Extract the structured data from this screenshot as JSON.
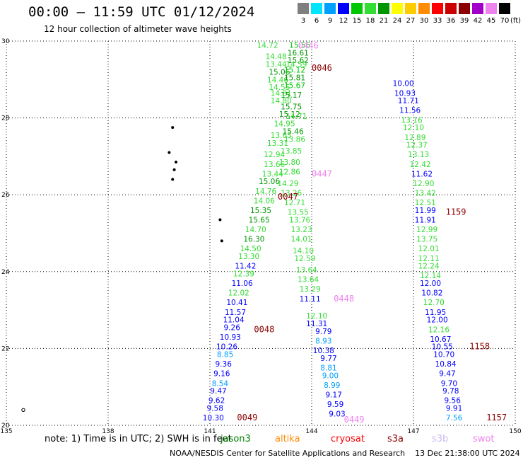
{
  "title": "00:00 – 11:59 UTC 01/12/2024",
  "subtitle": "12 hour collection of altimeter wave heights",
  "legend": {
    "bins": [
      {
        "label": "3",
        "color": "#7f7f7f"
      },
      {
        "label": "6",
        "color": "#00e5ff"
      },
      {
        "label": "9",
        "color": "#00a0ff"
      },
      {
        "label": "12",
        "color": "#0000ff"
      },
      {
        "label": "15",
        "color": "#00c800"
      },
      {
        "label": "18",
        "color": "#33dd33"
      },
      {
        "label": "21",
        "color": "#009600"
      },
      {
        "label": "24",
        "color": "#ffff00"
      },
      {
        "label": "27",
        "color": "#ffcc00"
      },
      {
        "label": "30",
        "color": "#ff8c00"
      },
      {
        "label": "33",
        "color": "#ff0000"
      },
      {
        "label": "36",
        "color": "#cc0000"
      },
      {
        "label": "39",
        "color": "#8b0000"
      },
      {
        "label": "42",
        "color": "#a000c8"
      },
      {
        "label": "45",
        "color": "#ee82ee"
      },
      {
        "label": "70",
        "color": "#000000"
      }
    ],
    "unit": "(ft)"
  },
  "note": "note: 1) Time is in UTC; 2) SWH is in feet",
  "satellites": [
    {
      "name": "jason3",
      "color": "#008000"
    },
    {
      "name": "altika",
      "color": "#ff8c00"
    },
    {
      "name": "cryosat",
      "color": "#ff0000"
    },
    {
      "name": "s3a",
      "color": "#8b0000"
    },
    {
      "name": "s3b",
      "color": "#ccbbee"
    },
    {
      "name": "swot",
      "color": "#ee82ee"
    }
  ],
  "footer": "NOAA/NESDIS Center for Satellite Applications and Research    13 Dec 21:38:00 UTC 2024",
  "chart_data": {
    "type": "scatter",
    "x_ticks": [
      "135",
      "138",
      "141",
      "144",
      "147",
      "150"
    ],
    "y_ticks": [
      "20",
      "22",
      "24",
      "26",
      "28",
      "30"
    ],
    "xlim": [
      135,
      150
    ],
    "ylim": [
      20,
      30
    ],
    "grid": true,
    "tracks": [
      {
        "points": [
          [
            142.7,
            29.9,
            "14.72",
            "#33dd33"
          ],
          [
            143.65,
            29.9,
            "15.56",
            "#00c800"
          ],
          [
            143.6,
            29.7,
            "16.61",
            "#009600"
          ],
          [
            142.95,
            29.6,
            "14.48",
            "#33dd33"
          ],
          [
            143.6,
            29.5,
            "15.62",
            "#009600"
          ],
          [
            142.95,
            29.4,
            "13.44",
            "#33dd33"
          ],
          [
            143.55,
            29.4,
            "14.59",
            "#33dd33"
          ],
          [
            143.05,
            29.2,
            "15.06",
            "#009600"
          ],
          [
            143.5,
            29.25,
            "15.12",
            "#00c800"
          ],
          [
            143.0,
            29.0,
            "14.46",
            "#33dd33"
          ],
          [
            143.5,
            29.05,
            "15.81",
            "#009600"
          ],
          [
            143.05,
            28.8,
            "14.55",
            "#33dd33"
          ],
          [
            143.5,
            28.85,
            "15.67",
            "#00c800"
          ],
          [
            143.1,
            28.65,
            "14.81",
            "#33dd33"
          ],
          [
            143.4,
            28.6,
            "15.17",
            "#009600"
          ],
          [
            143.1,
            28.45,
            "14.80",
            "#33dd33"
          ],
          [
            143.4,
            28.3,
            "15.75",
            "#009600"
          ],
          [
            143.35,
            28.1,
            "15.12",
            "#009600"
          ],
          [
            143.55,
            28.05,
            "14.71",
            "#33dd33"
          ],
          [
            143.2,
            27.85,
            "14.95",
            "#33dd33"
          ],
          [
            143.45,
            27.65,
            "15.46",
            "#009600"
          ],
          [
            143.1,
            27.55,
            "13.65",
            "#33dd33"
          ],
          [
            143.5,
            27.45,
            "13.86",
            "#33dd33"
          ],
          [
            143.0,
            27.35,
            "13.31",
            "#33dd33"
          ],
          [
            143.4,
            27.15,
            "13.85",
            "#33dd33"
          ],
          [
            142.9,
            27.05,
            "12.94",
            "#33dd33"
          ],
          [
            143.35,
            26.85,
            "13.80",
            "#33dd33"
          ],
          [
            142.9,
            26.8,
            "13.66",
            "#33dd33"
          ],
          [
            143.35,
            26.6,
            "12.86",
            "#33dd33"
          ],
          [
            142.85,
            26.55,
            "13.44",
            "#33dd33"
          ],
          [
            142.75,
            26.35,
            "15.06",
            "#009600"
          ],
          [
            143.3,
            26.3,
            "14.29",
            "#33dd33"
          ],
          [
            142.65,
            26.1,
            "14.76",
            "#33dd33"
          ],
          [
            143.4,
            26.05,
            "13.26",
            "#33dd33"
          ],
          [
            142.6,
            25.85,
            "14.06",
            "#33dd33"
          ],
          [
            143.5,
            25.8,
            "12.71",
            "#33dd33"
          ],
          [
            142.5,
            25.6,
            "15.35",
            "#009600"
          ],
          [
            143.6,
            25.55,
            "13.55",
            "#33dd33"
          ],
          [
            142.45,
            25.35,
            "15.65",
            "#009600"
          ],
          [
            143.65,
            25.35,
            "13.76",
            "#33dd33"
          ],
          [
            142.35,
            25.1,
            "14.70",
            "#33dd33"
          ],
          [
            143.7,
            25.1,
            "13.23",
            "#33dd33"
          ],
          [
            142.3,
            24.85,
            "16.30",
            "#009600"
          ],
          [
            143.7,
            24.85,
            "14.01",
            "#33dd33"
          ],
          [
            142.2,
            24.6,
            "14.50",
            "#33dd33"
          ],
          [
            143.75,
            24.55,
            "14.10",
            "#33dd33"
          ],
          [
            142.15,
            24.4,
            "13.30",
            "#33dd33"
          ],
          [
            143.8,
            24.35,
            "12.59",
            "#33dd33"
          ],
          [
            142.05,
            24.15,
            "11.42",
            "#0000ff"
          ],
          [
            143.85,
            24.05,
            "13.64",
            "#33dd33"
          ],
          [
            142.0,
            23.95,
            "12.39",
            "#33dd33"
          ],
          [
            143.9,
            23.8,
            "13.64",
            "#33dd33"
          ],
          [
            141.95,
            23.7,
            "11.06",
            "#0000ff"
          ],
          [
            143.95,
            23.55,
            "13.29",
            "#33dd33"
          ],
          [
            141.85,
            23.45,
            "12.02",
            "#33dd33"
          ],
          [
            143.95,
            23.3,
            "11.11",
            "#0000ff"
          ],
          [
            141.8,
            23.2,
            "10.41",
            "#0000ff"
          ],
          [
            141.75,
            22.95,
            "11.57",
            "#0000ff"
          ],
          [
            144.15,
            22.85,
            "12.10",
            "#33dd33"
          ],
          [
            141.7,
            22.75,
            "11.04",
            "#0000ff"
          ],
          [
            144.15,
            22.65,
            "11.31",
            "#0000ff"
          ],
          [
            141.65,
            22.55,
            "9.26",
            "#0000ff"
          ],
          [
            144.35,
            22.45,
            "9.79",
            "#0000ff"
          ],
          [
            141.6,
            22.3,
            "10.93",
            "#0000ff"
          ],
          [
            144.35,
            22.2,
            "8.93",
            "#00a0ff"
          ],
          [
            141.5,
            22.05,
            "10.26",
            "#0000ff"
          ],
          [
            144.35,
            21.95,
            "10.38",
            "#0000ff"
          ],
          [
            141.45,
            21.85,
            "8.85",
            "#00a0ff"
          ],
          [
            144.5,
            21.75,
            "9.77",
            "#0000ff"
          ],
          [
            141.4,
            21.6,
            "9.36",
            "#0000ff"
          ],
          [
            144.5,
            21.5,
            "8.81",
            "#00a0ff"
          ],
          [
            141.35,
            21.35,
            "9.16",
            "#0000ff"
          ],
          [
            144.55,
            21.3,
            "9.00",
            "#00a0ff"
          ],
          [
            141.3,
            21.1,
            "8.54",
            "#00a0ff"
          ],
          [
            144.6,
            21.05,
            "8.99",
            "#00a0ff"
          ],
          [
            141.25,
            20.9,
            "9.47",
            "#0000ff"
          ],
          [
            144.65,
            20.8,
            "9.17",
            "#0000ff"
          ],
          [
            141.2,
            20.65,
            "9.62",
            "#0000ff"
          ],
          [
            144.7,
            20.55,
            "9.59",
            "#0000ff"
          ],
          [
            141.15,
            20.45,
            "9.58",
            "#0000ff"
          ],
          [
            144.75,
            20.3,
            "9.03",
            "#0000ff"
          ],
          [
            141.1,
            20.2,
            "10.30",
            "#0000ff"
          ],
          [
            146.7,
            28.9,
            "10.00",
            "#0000ff"
          ],
          [
            146.75,
            28.65,
            "10.93",
            "#0000ff"
          ],
          [
            146.85,
            28.45,
            "11.71",
            "#0000ff"
          ],
          [
            146.9,
            28.2,
            "11.56",
            "#0000ff"
          ],
          [
            146.95,
            27.95,
            "13.16",
            "#33dd33"
          ],
          [
            147.0,
            27.75,
            "12.10",
            "#33dd33"
          ],
          [
            147.05,
            27.5,
            "12.89",
            "#33dd33"
          ],
          [
            147.1,
            27.3,
            "12.37",
            "#33dd33"
          ],
          [
            147.15,
            27.05,
            "13.13",
            "#33dd33"
          ],
          [
            147.2,
            26.8,
            "12.42",
            "#33dd33"
          ],
          [
            147.25,
            26.55,
            "11.62",
            "#0000ff"
          ],
          [
            147.3,
            26.3,
            "12.90",
            "#33dd33"
          ],
          [
            147.35,
            26.05,
            "13.42",
            "#33dd33"
          ],
          [
            147.35,
            25.8,
            "12.51",
            "#33dd33"
          ],
          [
            147.35,
            25.6,
            "11.99",
            "#0000ff"
          ],
          [
            147.35,
            25.35,
            "11.91",
            "#0000ff"
          ],
          [
            147.4,
            25.1,
            "12.99",
            "#33dd33"
          ],
          [
            147.4,
            24.85,
            "13.75",
            "#33dd33"
          ],
          [
            147.45,
            24.6,
            "12.01",
            "#33dd33"
          ],
          [
            147.45,
            24.35,
            "12.11",
            "#33dd33"
          ],
          [
            147.45,
            24.15,
            "12.24",
            "#33dd33"
          ],
          [
            147.5,
            23.9,
            "12.14",
            "#33dd33"
          ],
          [
            147.5,
            23.7,
            "12.00",
            "#0000ff"
          ],
          [
            147.55,
            23.45,
            "10.82",
            "#0000ff"
          ],
          [
            147.6,
            23.2,
            "12.70",
            "#33dd33"
          ],
          [
            147.65,
            22.95,
            "11.95",
            "#0000ff"
          ],
          [
            147.7,
            22.75,
            "12.00",
            "#0000ff"
          ],
          [
            147.75,
            22.5,
            "12.16",
            "#33dd33"
          ],
          [
            147.8,
            22.25,
            "10.67",
            "#0000ff"
          ],
          [
            147.85,
            22.05,
            "10.55",
            "#0000ff"
          ],
          [
            147.9,
            21.85,
            "10.70",
            "#0000ff"
          ],
          [
            147.95,
            21.6,
            "10.84",
            "#0000ff"
          ],
          [
            148.0,
            21.35,
            "9.47",
            "#0000ff"
          ],
          [
            148.05,
            21.1,
            "9.70",
            "#0000ff"
          ],
          [
            148.1,
            20.9,
            "9.78",
            "#0000ff"
          ],
          [
            148.15,
            20.65,
            "9.56",
            "#0000ff"
          ],
          [
            148.2,
            20.45,
            "9.91",
            "#0000ff"
          ],
          [
            148.2,
            20.2,
            "7.56",
            "#00a0ff"
          ]
        ]
      }
    ],
    "time_labels": [
      {
        "x": 143.6,
        "y": 29.88,
        "text": "0446",
        "color": "#ee82ee"
      },
      {
        "x": 144.0,
        "y": 29.3,
        "text": "0046",
        "color": "#8b0000"
      },
      {
        "x": 144.0,
        "y": 26.55,
        "text": "0447",
        "color": "#ee82ee"
      },
      {
        "x": 143.0,
        "y": 25.95,
        "text": "0047",
        "color": "#8b0000"
      },
      {
        "x": 147.95,
        "y": 25.55,
        "text": "1159",
        "color": "#8b0000"
      },
      {
        "x": 144.65,
        "y": 23.3,
        "text": "0448",
        "color": "#ee82ee"
      },
      {
        "x": 142.3,
        "y": 22.5,
        "text": "0048",
        "color": "#8b0000"
      },
      {
        "x": 148.65,
        "y": 22.05,
        "text": "1158",
        "color": "#8b0000"
      },
      {
        "x": 141.8,
        "y": 20.2,
        "text": "0049",
        "color": "#8b0000"
      },
      {
        "x": 144.95,
        "y": 20.15,
        "text": "0449",
        "color": "#ee82ee"
      },
      {
        "x": 149.15,
        "y": 20.2,
        "text": "1157",
        "color": "#8b0000"
      }
    ]
  }
}
